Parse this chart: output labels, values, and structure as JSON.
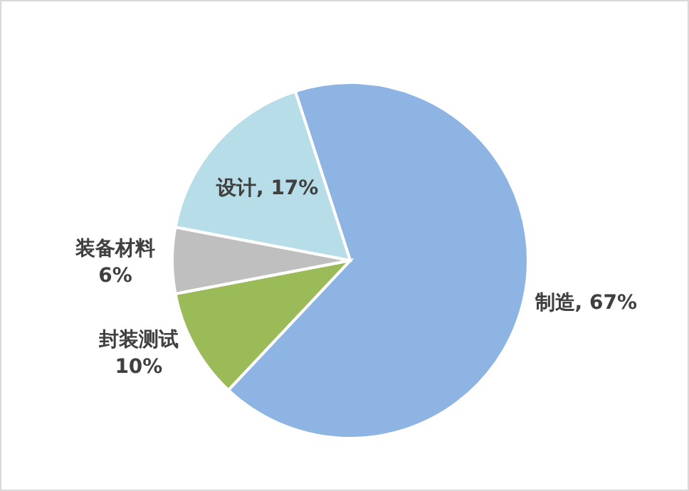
{
  "chart_data": {
    "type": "pie",
    "categories": [
      "制造",
      "封装测试",
      "装备材料",
      "设计"
    ],
    "values": [
      67,
      10,
      6,
      17
    ],
    "value_labels": [
      "67%",
      "10%",
      "6%",
      "17%"
    ],
    "colors": [
      "#8eb4e3",
      "#9bbb59",
      "#bfbfbf",
      "#b7dee8"
    ],
    "legend": false
  }
}
